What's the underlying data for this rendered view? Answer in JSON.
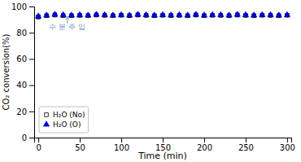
{
  "chart_data": {
    "type": "scatter",
    "xlabel": "Time (min)",
    "ylabel": "CO₂ conversion(%)",
    "xlim": [
      -5,
      305
    ],
    "ylim": [
      0,
      100
    ],
    "xticks": [
      0,
      50,
      100,
      150,
      200,
      250,
      300
    ],
    "yticks": [
      0,
      20,
      40,
      60,
      80,
      100
    ],
    "legend": "lower left",
    "series": [
      {
        "name": "H₂O (No)",
        "color": "#000000",
        "marker": "open-square",
        "x": [
          0,
          10,
          20,
          30,
          40,
          50,
          60,
          70,
          80,
          90,
          100,
          110,
          120,
          130,
          140,
          150,
          160,
          170,
          180,
          190,
          200,
          210,
          220,
          230,
          240,
          250,
          260,
          270,
          280,
          290,
          300
        ],
        "values": [
          92.0,
          93.0,
          93.5,
          93.0,
          93.0,
          93.2,
          93.0,
          93.5,
          93.2,
          93.0,
          93.3,
          93.0,
          93.5,
          93.2,
          93.0,
          93.3,
          93.1,
          93.2,
          93.0,
          93.5,
          93.0,
          93.3,
          93.2,
          93.0,
          93.5,
          93.2,
          93.0,
          93.3,
          93.2,
          93.0,
          93.3
        ],
        "errors": [
          1.2,
          1.0,
          1.0,
          1.2,
          1.0,
          1.1,
          1.0,
          1.2,
          1.0,
          1.1,
          1.0,
          1.2,
          1.1,
          1.0,
          1.1,
          1.0,
          1.1,
          1.0,
          1.1,
          1.2,
          1.0,
          1.1,
          1.0,
          1.1,
          1.2,
          1.0,
          1.1,
          1.0,
          1.1,
          1.0,
          1.1
        ]
      },
      {
        "name": "H₂O (O)",
        "color": "#0000cc",
        "marker": "triangle",
        "x": [
          0,
          10,
          20,
          30,
          40,
          50,
          60,
          70,
          80,
          90,
          100,
          110,
          120,
          130,
          140,
          150,
          160,
          170,
          180,
          190,
          200,
          210,
          220,
          230,
          240,
          250,
          260,
          270,
          280,
          290,
          300
        ],
        "values": [
          92.5,
          93.2,
          93.8,
          93.5,
          93.2,
          93.5,
          93.2,
          93.8,
          93.5,
          93.2,
          93.5,
          93.2,
          93.8,
          93.5,
          93.2,
          93.5,
          93.3,
          93.5,
          93.2,
          93.8,
          93.2,
          93.5,
          93.5,
          93.2,
          93.8,
          93.5,
          93.2,
          93.5,
          93.5,
          93.2,
          93.5
        ],
        "errors": [
          1.1,
          1.0,
          1.2,
          1.0,
          1.1,
          1.2,
          1.0,
          1.1,
          1.2,
          1.0,
          1.1,
          1.0,
          1.2,
          1.1,
          1.0,
          1.1,
          1.0,
          1.1,
          1.0,
          1.2,
          1.0,
          1.1,
          1.0,
          1.1,
          1.2,
          1.0,
          1.1,
          1.0,
          1.1,
          1.0,
          1.1
        ]
      }
    ],
    "annotations": [
      {
        "text": "수 분 주 입",
        "x": 35,
        "y": 87,
        "arrow_y": 92.5,
        "color": "#7799bb"
      }
    ]
  }
}
